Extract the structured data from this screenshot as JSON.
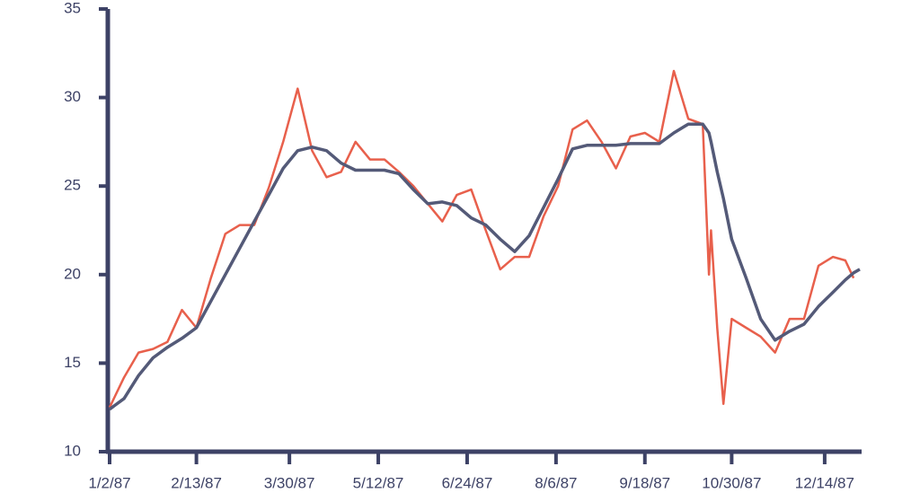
{
  "chart_data": {
    "type": "line",
    "x": [
      "1987-01-02",
      "1987-01-09",
      "1987-01-16",
      "1987-01-23",
      "1987-01-30",
      "1987-02-06",
      "1987-02-13",
      "1987-02-20",
      "1987-02-27",
      "1987-03-06",
      "1987-03-13",
      "1987-03-20",
      "1987-03-27",
      "1987-04-03",
      "1987-04-10",
      "1987-04-17",
      "1987-04-24",
      "1987-05-01",
      "1987-05-08",
      "1987-05-15",
      "1987-05-22",
      "1987-05-29",
      "1987-06-05",
      "1987-06-12",
      "1987-06-19",
      "1987-06-26",
      "1987-07-03",
      "1987-07-10",
      "1987-07-17",
      "1987-07-24",
      "1987-07-31",
      "1987-08-07",
      "1987-08-14",
      "1987-08-21",
      "1987-08-28",
      "1987-09-04",
      "1987-09-11",
      "1987-09-18",
      "1987-09-25",
      "1987-10-02",
      "1987-10-09",
      "1987-10-16",
      "1987-10-19",
      "1987-10-20",
      "1987-10-23",
      "1987-10-26",
      "1987-10-30",
      "1987-11-06",
      "1987-11-13",
      "1987-11-20",
      "1987-11-27",
      "1987-12-04",
      "1987-12-11",
      "1987-12-18",
      "1987-12-24",
      "1987-12-28",
      "1987-12-31"
    ],
    "series": [
      {
        "color": "#e8604c",
        "values": [
          12.5,
          14.2,
          15.6,
          15.8,
          16.2,
          18.0,
          17.0,
          19.8,
          22.3,
          22.8,
          22.8,
          24.9,
          27.5,
          30.5,
          27.0,
          25.5,
          25.8,
          27.5,
          26.5,
          26.5,
          25.8,
          25.0,
          24.0,
          23.0,
          24.5,
          24.8,
          22.5,
          20.3,
          21.0,
          21.0,
          23.3,
          25.0,
          28.2,
          28.7,
          27.5,
          26.0,
          27.8,
          28.0,
          27.5,
          31.5,
          28.8,
          28.5,
          20.0,
          22.5,
          17.0,
          12.7,
          17.5,
          17.0,
          16.5,
          15.6,
          17.5,
          17.5,
          20.5,
          21.0,
          20.8,
          19.8,
          null
        ]
      },
      {
        "color": "#545a78",
        "values": [
          12.4,
          13.0,
          14.3,
          15.3,
          15.9,
          16.4,
          17.0,
          18.5,
          20.0,
          21.5,
          23.0,
          24.5,
          26.0,
          27.0,
          27.2,
          27.0,
          26.3,
          25.9,
          25.9,
          25.9,
          25.7,
          24.8,
          24.0,
          24.1,
          23.9,
          23.2,
          22.8,
          22.0,
          21.3,
          22.2,
          23.8,
          25.4,
          27.1,
          27.3,
          27.3,
          27.3,
          27.4,
          27.4,
          27.4,
          28.0,
          28.5,
          28.5,
          28.0,
          27.5,
          25.8,
          24.3,
          22.0,
          19.8,
          17.5,
          16.3,
          16.8,
          17.2,
          18.2,
          19.0,
          19.7,
          20.1,
          20.3
        ]
      }
    ],
    "xlim": [
      "1987-01-02",
      "1987-12-31"
    ],
    "xticks": [
      {
        "value": "1987-01-02",
        "label": "1/2/87"
      },
      {
        "value": "1987-02-13",
        "label": "2/13/87"
      },
      {
        "value": "1987-03-30",
        "label": "3/30/87"
      },
      {
        "value": "1987-05-12",
        "label": "5/12/87"
      },
      {
        "value": "1987-06-24",
        "label": "6/24/87"
      },
      {
        "value": "1987-08-06",
        "label": "8/6/87"
      },
      {
        "value": "1987-09-18",
        "label": "9/18/87"
      },
      {
        "value": "1987-10-30",
        "label": "10/30/87"
      },
      {
        "value": "1987-12-14",
        "label": "12/14/87"
      }
    ],
    "ylim": [
      10,
      35
    ],
    "yticks": [
      10,
      15,
      20,
      25,
      30,
      35
    ],
    "axis_color": "#3d4266"
  }
}
